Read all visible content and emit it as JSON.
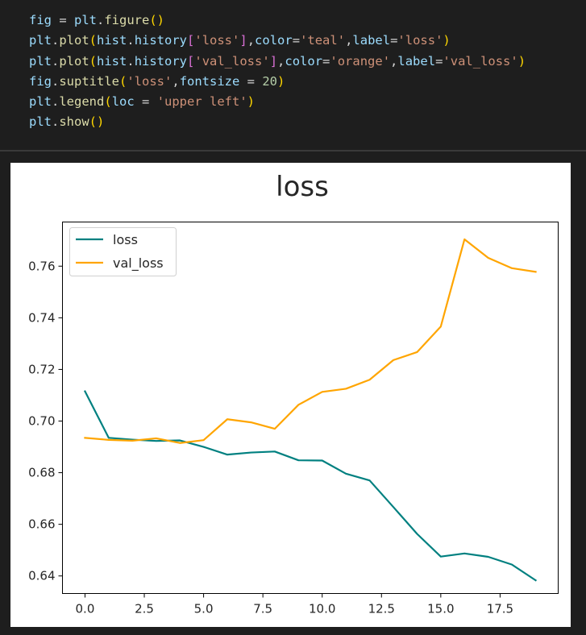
{
  "code": {
    "lines": [
      [
        [
          "var",
          "fig"
        ],
        [
          "op",
          " = "
        ],
        [
          "var",
          "plt"
        ],
        [
          "op",
          "."
        ],
        [
          "fn",
          "figure"
        ],
        [
          "br1",
          "()"
        ]
      ],
      [
        [
          "var",
          "plt"
        ],
        [
          "op",
          "."
        ],
        [
          "fn",
          "plot"
        ],
        [
          "br1",
          "("
        ],
        [
          "var",
          "hist"
        ],
        [
          "op",
          "."
        ],
        [
          "var",
          "history"
        ],
        [
          "br2",
          "["
        ],
        [
          "str",
          "'loss'"
        ],
        [
          "br2",
          "]"
        ],
        [
          "op",
          ","
        ],
        [
          "var",
          "color"
        ],
        [
          "op",
          "="
        ],
        [
          "str",
          "'teal'"
        ],
        [
          "op",
          ","
        ],
        [
          "var",
          "label"
        ],
        [
          "op",
          "="
        ],
        [
          "str",
          "'loss'"
        ],
        [
          "br1",
          ")"
        ]
      ],
      [
        [
          "var",
          "plt"
        ],
        [
          "op",
          "."
        ],
        [
          "fn",
          "plot"
        ],
        [
          "br1",
          "("
        ],
        [
          "var",
          "hist"
        ],
        [
          "op",
          "."
        ],
        [
          "var",
          "history"
        ],
        [
          "br2",
          "["
        ],
        [
          "str",
          "'val_loss'"
        ],
        [
          "br2",
          "]"
        ],
        [
          "op",
          ","
        ],
        [
          "var",
          "color"
        ],
        [
          "op",
          "="
        ],
        [
          "str",
          "'orange'"
        ],
        [
          "op",
          ","
        ],
        [
          "var",
          "label"
        ],
        [
          "op",
          "="
        ],
        [
          "str",
          "'val_loss'"
        ],
        [
          "br1",
          ")"
        ]
      ],
      [
        [
          "var",
          "fig"
        ],
        [
          "op",
          "."
        ],
        [
          "fn",
          "suptitle"
        ],
        [
          "br1",
          "("
        ],
        [
          "str",
          "'loss'"
        ],
        [
          "op",
          ","
        ],
        [
          "var",
          "fontsize"
        ],
        [
          "op",
          " = "
        ],
        [
          "num",
          "20"
        ],
        [
          "br1",
          ")"
        ]
      ],
      [
        [
          "var",
          "plt"
        ],
        [
          "op",
          "."
        ],
        [
          "fn",
          "legend"
        ],
        [
          "br1",
          "("
        ],
        [
          "var",
          "loc"
        ],
        [
          "op",
          " = "
        ],
        [
          "str",
          "'upper left'"
        ],
        [
          "br1",
          ")"
        ]
      ],
      [
        [
          "var",
          "plt"
        ],
        [
          "op",
          "."
        ],
        [
          "fn",
          "show"
        ],
        [
          "br1",
          "()"
        ]
      ]
    ]
  },
  "chart_data": {
    "type": "line",
    "title": "loss",
    "xlabel": "",
    "ylabel": "",
    "xlim": [
      -0.95,
      19.95
    ],
    "ylim": [
      0.6332,
      0.7771
    ],
    "x_ticks": [
      "0.0",
      "2.5",
      "5.0",
      "7.5",
      "10.0",
      "12.5",
      "15.0",
      "17.5"
    ],
    "x_tick_values": [
      0,
      2.5,
      5,
      7.5,
      10,
      12.5,
      15,
      17.5
    ],
    "y_ticks": [
      "0.64",
      "0.66",
      "0.68",
      "0.70",
      "0.72",
      "0.74",
      "0.76"
    ],
    "y_tick_values": [
      0.64,
      0.66,
      0.68,
      0.7,
      0.72,
      0.74,
      0.76
    ],
    "grid": false,
    "legend_position": "upper-left",
    "x": [
      0,
      1,
      2,
      3,
      4,
      5,
      6,
      7,
      8,
      9,
      10,
      11,
      12,
      13,
      14,
      15,
      16,
      17,
      18,
      19
    ],
    "series": [
      {
        "name": "loss",
        "color": "#008080",
        "values": [
          0.7115,
          0.6935,
          0.6928,
          0.6923,
          0.6925,
          0.69,
          0.687,
          0.6878,
          0.6882,
          0.6848,
          0.6847,
          0.6796,
          0.677,
          0.6667,
          0.6563,
          0.6475,
          0.6487,
          0.6474,
          0.6444,
          0.6383
        ]
      },
      {
        "name": "val_loss",
        "color": "#FFA500",
        "values": [
          0.6935,
          0.6927,
          0.6924,
          0.6933,
          0.6915,
          0.6926,
          0.7007,
          0.6995,
          0.697,
          0.7063,
          0.7113,
          0.7125,
          0.716,
          0.7236,
          0.7267,
          0.7366,
          0.7704,
          0.7632,
          0.7592,
          0.7578
        ]
      }
    ]
  }
}
